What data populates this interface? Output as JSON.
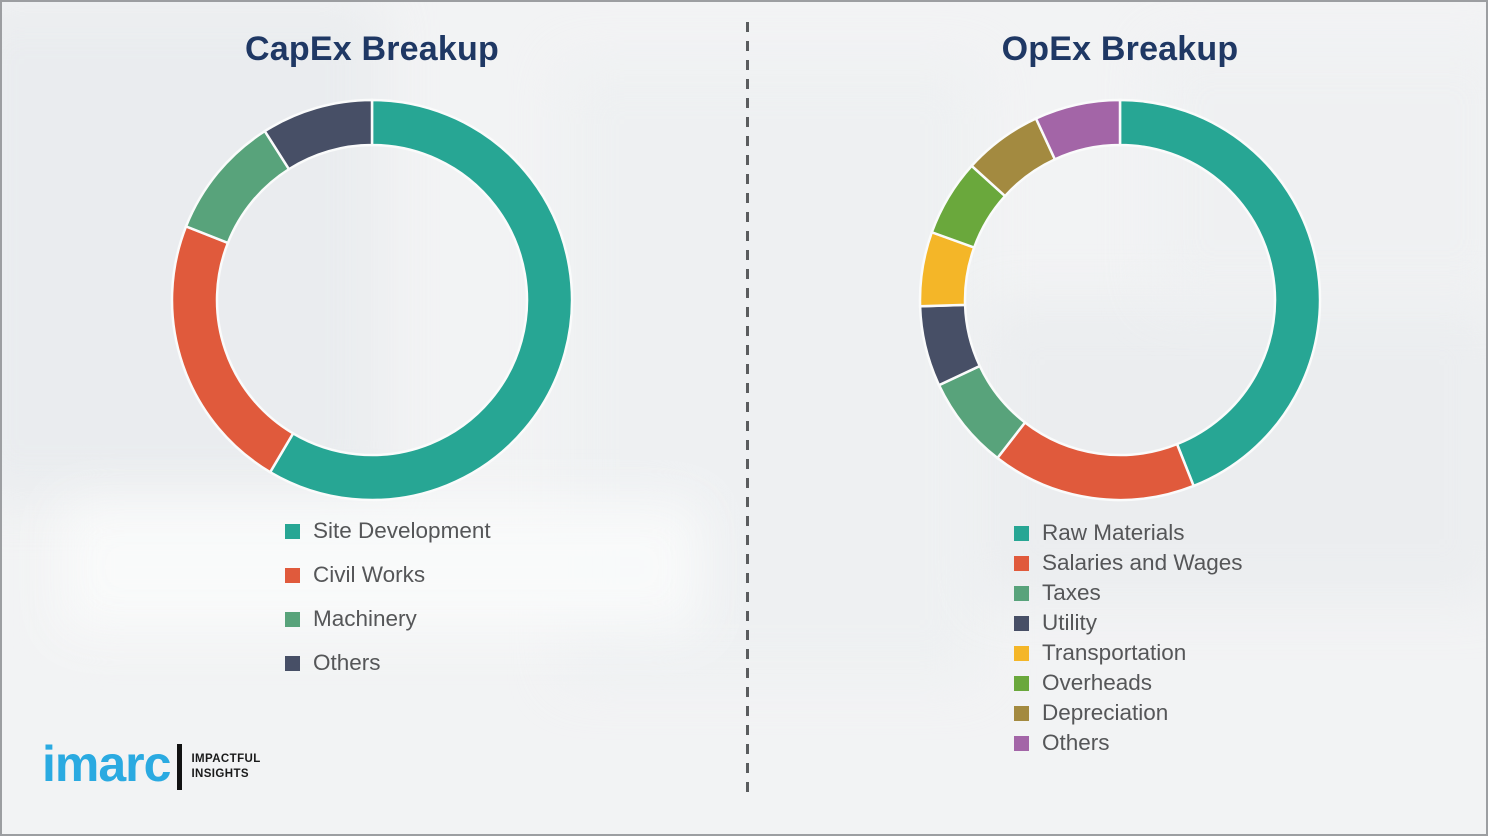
{
  "page": {
    "background_color": "#f2f3f4",
    "border_color": "#9c9ea1",
    "divider_color": "#5a5c5e",
    "title_color": "#1f3864",
    "legend_text_color": "#555658"
  },
  "branding": {
    "logo_text": "imarc",
    "logo_color": "#2aaae1",
    "tagline_line1": "IMPACTFUL",
    "tagline_line2": "INSIGHTS"
  },
  "chart_data": [
    {
      "type": "pie",
      "subtype": "donut",
      "title": "CapEx Breakup",
      "units": "percent (estimated from arc angles; no numeric labels shown)",
      "legend_position": "below-left",
      "categories": [
        "Site Development",
        "Civil Works",
        "Machinery",
        "Others"
      ],
      "values": [
        58.5,
        22.5,
        10,
        9
      ],
      "colors": [
        "#27a694",
        "#e05a3c",
        "#58a37b",
        "#474f66"
      ],
      "start_angle_deg": 0,
      "direction": "clockwise"
    },
    {
      "type": "pie",
      "subtype": "donut",
      "title": "OpEx Breakup",
      "units": "percent (estimated from arc angles; no numeric labels shown)",
      "legend_position": "below-left",
      "categories": [
        "Raw Materials",
        "Salaries and Wages",
        "Taxes",
        "Utility",
        "Transportation",
        "Overheads",
        "Depreciation",
        "Others"
      ],
      "values": [
        44,
        16.5,
        7.5,
        6.5,
        6,
        6.2,
        6.4,
        6.9
      ],
      "colors": [
        "#27a694",
        "#e05a3c",
        "#58a37b",
        "#474f66",
        "#f4b628",
        "#6aa83c",
        "#a38a40",
        "#a365a7"
      ],
      "start_angle_deg": 0,
      "direction": "clockwise"
    }
  ]
}
